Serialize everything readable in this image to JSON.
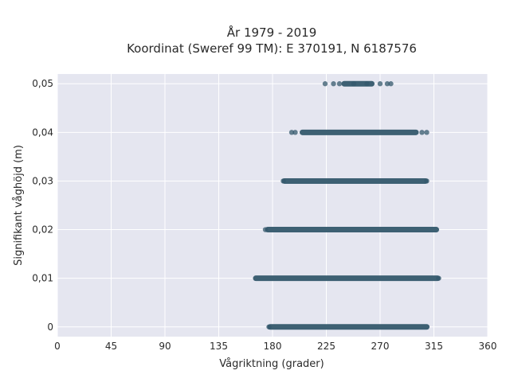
{
  "chart_data": {
    "type": "scatter",
    "title": "År 1979 - 2019",
    "subtitle": "Koordinat (Sweref 99 TM): E 370191, N 6187576",
    "xlabel": "Vågriktning (grader)",
    "ylabel": "Signifikant våghöjd (m)",
    "xlim": [
      0,
      360
    ],
    "ylim": [
      -0.002,
      0.052
    ],
    "x_ticks": [
      0,
      45,
      90,
      135,
      180,
      225,
      270,
      315,
      360
    ],
    "x_tick_labels": [
      "0",
      "45",
      "90",
      "135",
      "180",
      "225",
      "270",
      "315",
      "360"
    ],
    "y_ticks": [
      0,
      0.01,
      0.02,
      0.03,
      0.04,
      0.05
    ],
    "y_tick_labels": [
      "0",
      "0,01",
      "0,02",
      "0,03",
      "0,04",
      "0,05"
    ],
    "grid": true,
    "background": "#e5e6f0",
    "marker_color": "#34586c",
    "bands": [
      {
        "y": 0.05,
        "dense_from": 240,
        "dense_to": 263,
        "scatter": [
          224,
          231,
          236,
          248,
          259,
          270,
          276,
          279
        ]
      },
      {
        "y": 0.04,
        "dense_from": 205,
        "dense_to": 300,
        "scatter": [
          196,
          199,
          305,
          309
        ]
      },
      {
        "y": 0.03,
        "dense_from": 190,
        "dense_to": 308,
        "scatter": [
          189,
          309
        ]
      },
      {
        "y": 0.02,
        "dense_from": 176,
        "dense_to": 317,
        "scatter": [
          174
        ]
      },
      {
        "y": 0.01,
        "dense_from": 166,
        "dense_to": 318,
        "scatter": [
          319
        ]
      },
      {
        "y": 0.0,
        "dense_from": 178,
        "dense_to": 309,
        "scatter": [
          177
        ]
      }
    ]
  }
}
